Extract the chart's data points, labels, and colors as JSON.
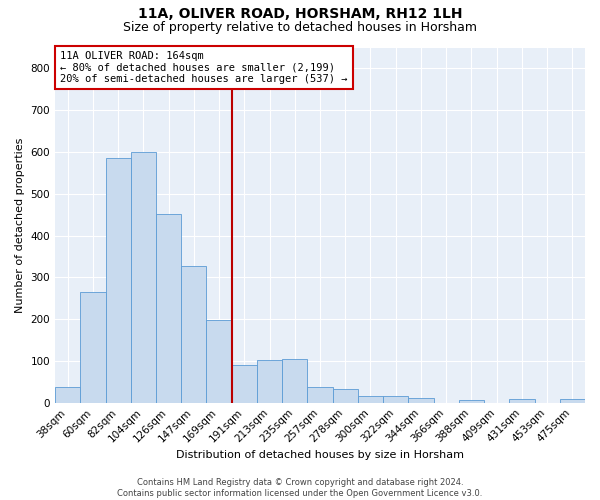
{
  "title1": "11A, OLIVER ROAD, HORSHAM, RH12 1LH",
  "title2": "Size of property relative to detached houses in Horsham",
  "xlabel": "Distribution of detached houses by size in Horsham",
  "ylabel": "Number of detached properties",
  "categories": [
    "38sqm",
    "60sqm",
    "82sqm",
    "104sqm",
    "126sqm",
    "147sqm",
    "169sqm",
    "191sqm",
    "213sqm",
    "235sqm",
    "257sqm",
    "278sqm",
    "300sqm",
    "322sqm",
    "344sqm",
    "366sqm",
    "388sqm",
    "409sqm",
    "431sqm",
    "453sqm",
    "475sqm"
  ],
  "values": [
    38,
    265,
    585,
    600,
    452,
    328,
    197,
    90,
    102,
    104,
    38,
    33,
    15,
    15,
    11,
    0,
    7,
    0,
    10,
    0,
    8
  ],
  "bar_color": "#c8daee",
  "bar_edge_color": "#5b9bd5",
  "vline_x": 6.5,
  "vline_color": "#bb0000",
  "annotation_text": "11A OLIVER ROAD: 164sqm\n← 80% of detached houses are smaller (2,199)\n20% of semi-detached houses are larger (537) →",
  "annotation_box_color": "#ffffff",
  "annotation_box_edge": "#cc0000",
  "ylim": [
    0,
    850
  ],
  "yticks": [
    0,
    100,
    200,
    300,
    400,
    500,
    600,
    700,
    800
  ],
  "bg_color": "#e8eff8",
  "grid_color": "#ffffff",
  "footer": "Contains HM Land Registry data © Crown copyright and database right 2024.\nContains public sector information licensed under the Open Government Licence v3.0.",
  "title1_fontsize": 10,
  "title2_fontsize": 9,
  "annotation_fontsize": 7.5,
  "footer_fontsize": 6.0,
  "ylabel_fontsize": 8,
  "xlabel_fontsize": 8,
  "tick_fontsize": 7.5
}
